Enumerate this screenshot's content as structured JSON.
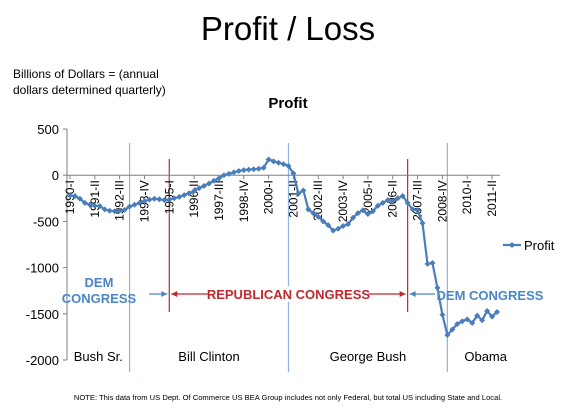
{
  "slide": {
    "title": "Profit / Loss",
    "units_note_line1": "Billions of Dollars = (annual",
    "units_note_line2": "dollars determined quarterly)",
    "footnote": "NOTE:  This data from US Dept. Of Commerce US BEA Group includes not only Federal, but total US including State and Local."
  },
  "colors": {
    "series": "#4a7ebb",
    "presidents": "#8db3e2",
    "congress_rep": "#c0282e",
    "congress_dem": "#4a86c5"
  },
  "chart_data": {
    "type": "line",
    "title": "Profit",
    "ylim": [
      -2000,
      500
    ],
    "yticks": [
      500,
      0,
      -500,
      -1000,
      -1500,
      -2000
    ],
    "xticks": [
      {
        "label": "1990-I",
        "x": 1990.0
      },
      {
        "label": "1991-II",
        "x": 1991.25
      },
      {
        "label": "1992-III",
        "x": 1992.5
      },
      {
        "label": "1993-IV",
        "x": 1993.75
      },
      {
        "label": "1995-I",
        "x": 1995.0
      },
      {
        "label": "1996-II",
        "x": 1996.25
      },
      {
        "label": "1997-III",
        "x": 1997.5
      },
      {
        "label": "1998-IV",
        "x": 1998.75
      },
      {
        "label": "2000-I",
        "x": 2000.0
      },
      {
        "label": "2001-II",
        "x": 2001.25
      },
      {
        "label": "2002-III",
        "x": 2002.5
      },
      {
        "label": "2003-IV",
        "x": 2003.75
      },
      {
        "label": "2005-I",
        "x": 2005.0
      },
      {
        "label": "2006-II",
        "x": 2006.25
      },
      {
        "label": "2007-III",
        "x": 2007.5
      },
      {
        "label": "2008-IV",
        "x": 2008.75
      },
      {
        "label": "2010-I",
        "x": 2010.0
      },
      {
        "label": "2011-II",
        "x": 2011.25
      }
    ],
    "xlim": [
      1989.85,
      2011.65
    ],
    "grid": false,
    "legend": {
      "position": "right",
      "entries": [
        "Profit"
      ]
    },
    "series": [
      {
        "name": "Profit",
        "points": [
          [
            1990.0,
            -220
          ],
          [
            1990.25,
            -225
          ],
          [
            1990.5,
            -255
          ],
          [
            1990.75,
            -300
          ],
          [
            1991.0,
            -320
          ],
          [
            1991.25,
            -330
          ],
          [
            1991.5,
            -335
          ],
          [
            1991.75,
            -370
          ],
          [
            1992.0,
            -385
          ],
          [
            1992.25,
            -390
          ],
          [
            1992.5,
            -385
          ],
          [
            1992.75,
            -375
          ],
          [
            1993.0,
            -340
          ],
          [
            1993.25,
            -320
          ],
          [
            1993.5,
            -300
          ],
          [
            1993.75,
            -280
          ],
          [
            1994.0,
            -265
          ],
          [
            1994.25,
            -255
          ],
          [
            1994.5,
            -260
          ],
          [
            1994.75,
            -270
          ],
          [
            1995.0,
            -265
          ],
          [
            1995.25,
            -250
          ],
          [
            1995.5,
            -235
          ],
          [
            1995.75,
            -215
          ],
          [
            1996.0,
            -195
          ],
          [
            1996.25,
            -170
          ],
          [
            1996.5,
            -140
          ],
          [
            1996.75,
            -115
          ],
          [
            1997.0,
            -90
          ],
          [
            1997.25,
            -60
          ],
          [
            1997.5,
            -35
          ],
          [
            1997.75,
            0
          ],
          [
            1998.0,
            15
          ],
          [
            1998.25,
            30
          ],
          [
            1998.5,
            45
          ],
          [
            1998.75,
            55
          ],
          [
            1999.0,
            60
          ],
          [
            1999.25,
            65
          ],
          [
            1999.5,
            70
          ],
          [
            1999.75,
            80
          ],
          [
            2000.0,
            170
          ],
          [
            2000.25,
            150
          ],
          [
            2000.5,
            135
          ],
          [
            2000.75,
            120
          ],
          [
            2001.0,
            100
          ],
          [
            2001.25,
            20
          ],
          [
            2001.5,
            -200
          ],
          [
            2001.75,
            -165
          ],
          [
            2002.0,
            -370
          ],
          [
            2002.25,
            -410
          ],
          [
            2002.5,
            -450
          ],
          [
            2002.75,
            -500
          ],
          [
            2003.0,
            -540
          ],
          [
            2003.25,
            -600
          ],
          [
            2003.5,
            -580
          ],
          [
            2003.75,
            -550
          ],
          [
            2004.0,
            -530
          ],
          [
            2004.25,
            -460
          ],
          [
            2004.5,
            -410
          ],
          [
            2004.75,
            -380
          ],
          [
            2005.0,
            -420
          ],
          [
            2005.25,
            -390
          ],
          [
            2005.5,
            -330
          ],
          [
            2005.75,
            -300
          ],
          [
            2006.0,
            -270
          ],
          [
            2006.25,
            -280
          ],
          [
            2006.5,
            -250
          ],
          [
            2006.75,
            -225
          ],
          [
            2007.0,
            -300
          ],
          [
            2007.25,
            -370
          ],
          [
            2007.5,
            -380
          ],
          [
            2007.75,
            -520
          ],
          [
            2008.0,
            -960
          ],
          [
            2008.25,
            -950
          ],
          [
            2008.5,
            -1220
          ],
          [
            2008.75,
            -1510
          ],
          [
            2009.0,
            -1730
          ],
          [
            2009.25,
            -1670
          ],
          [
            2009.5,
            -1610
          ],
          [
            2009.75,
            -1580
          ],
          [
            2010.0,
            -1560
          ],
          [
            2010.25,
            -1600
          ],
          [
            2010.5,
            -1520
          ],
          [
            2010.75,
            -1570
          ],
          [
            2011.0,
            -1470
          ],
          [
            2011.25,
            -1530
          ],
          [
            2011.5,
            -1480
          ]
        ]
      }
    ],
    "president_eras": [
      {
        "name": "Bush Sr.",
        "end": 1993.0
      },
      {
        "name": "Bill Clinton",
        "end": 2001.0
      },
      {
        "name": "George Bush",
        "end": 2009.0
      },
      {
        "name": "Obama",
        "end": 2011.65
      }
    ],
    "congress_lines": [
      1995.0,
      2007.0
    ],
    "congress_labels": {
      "dem1_line1": "DEM",
      "dem1_line2": "CONGRESS",
      "republican": "REPUBLICAN CONGRESS",
      "dem2": "DEM CONGRESS"
    }
  }
}
